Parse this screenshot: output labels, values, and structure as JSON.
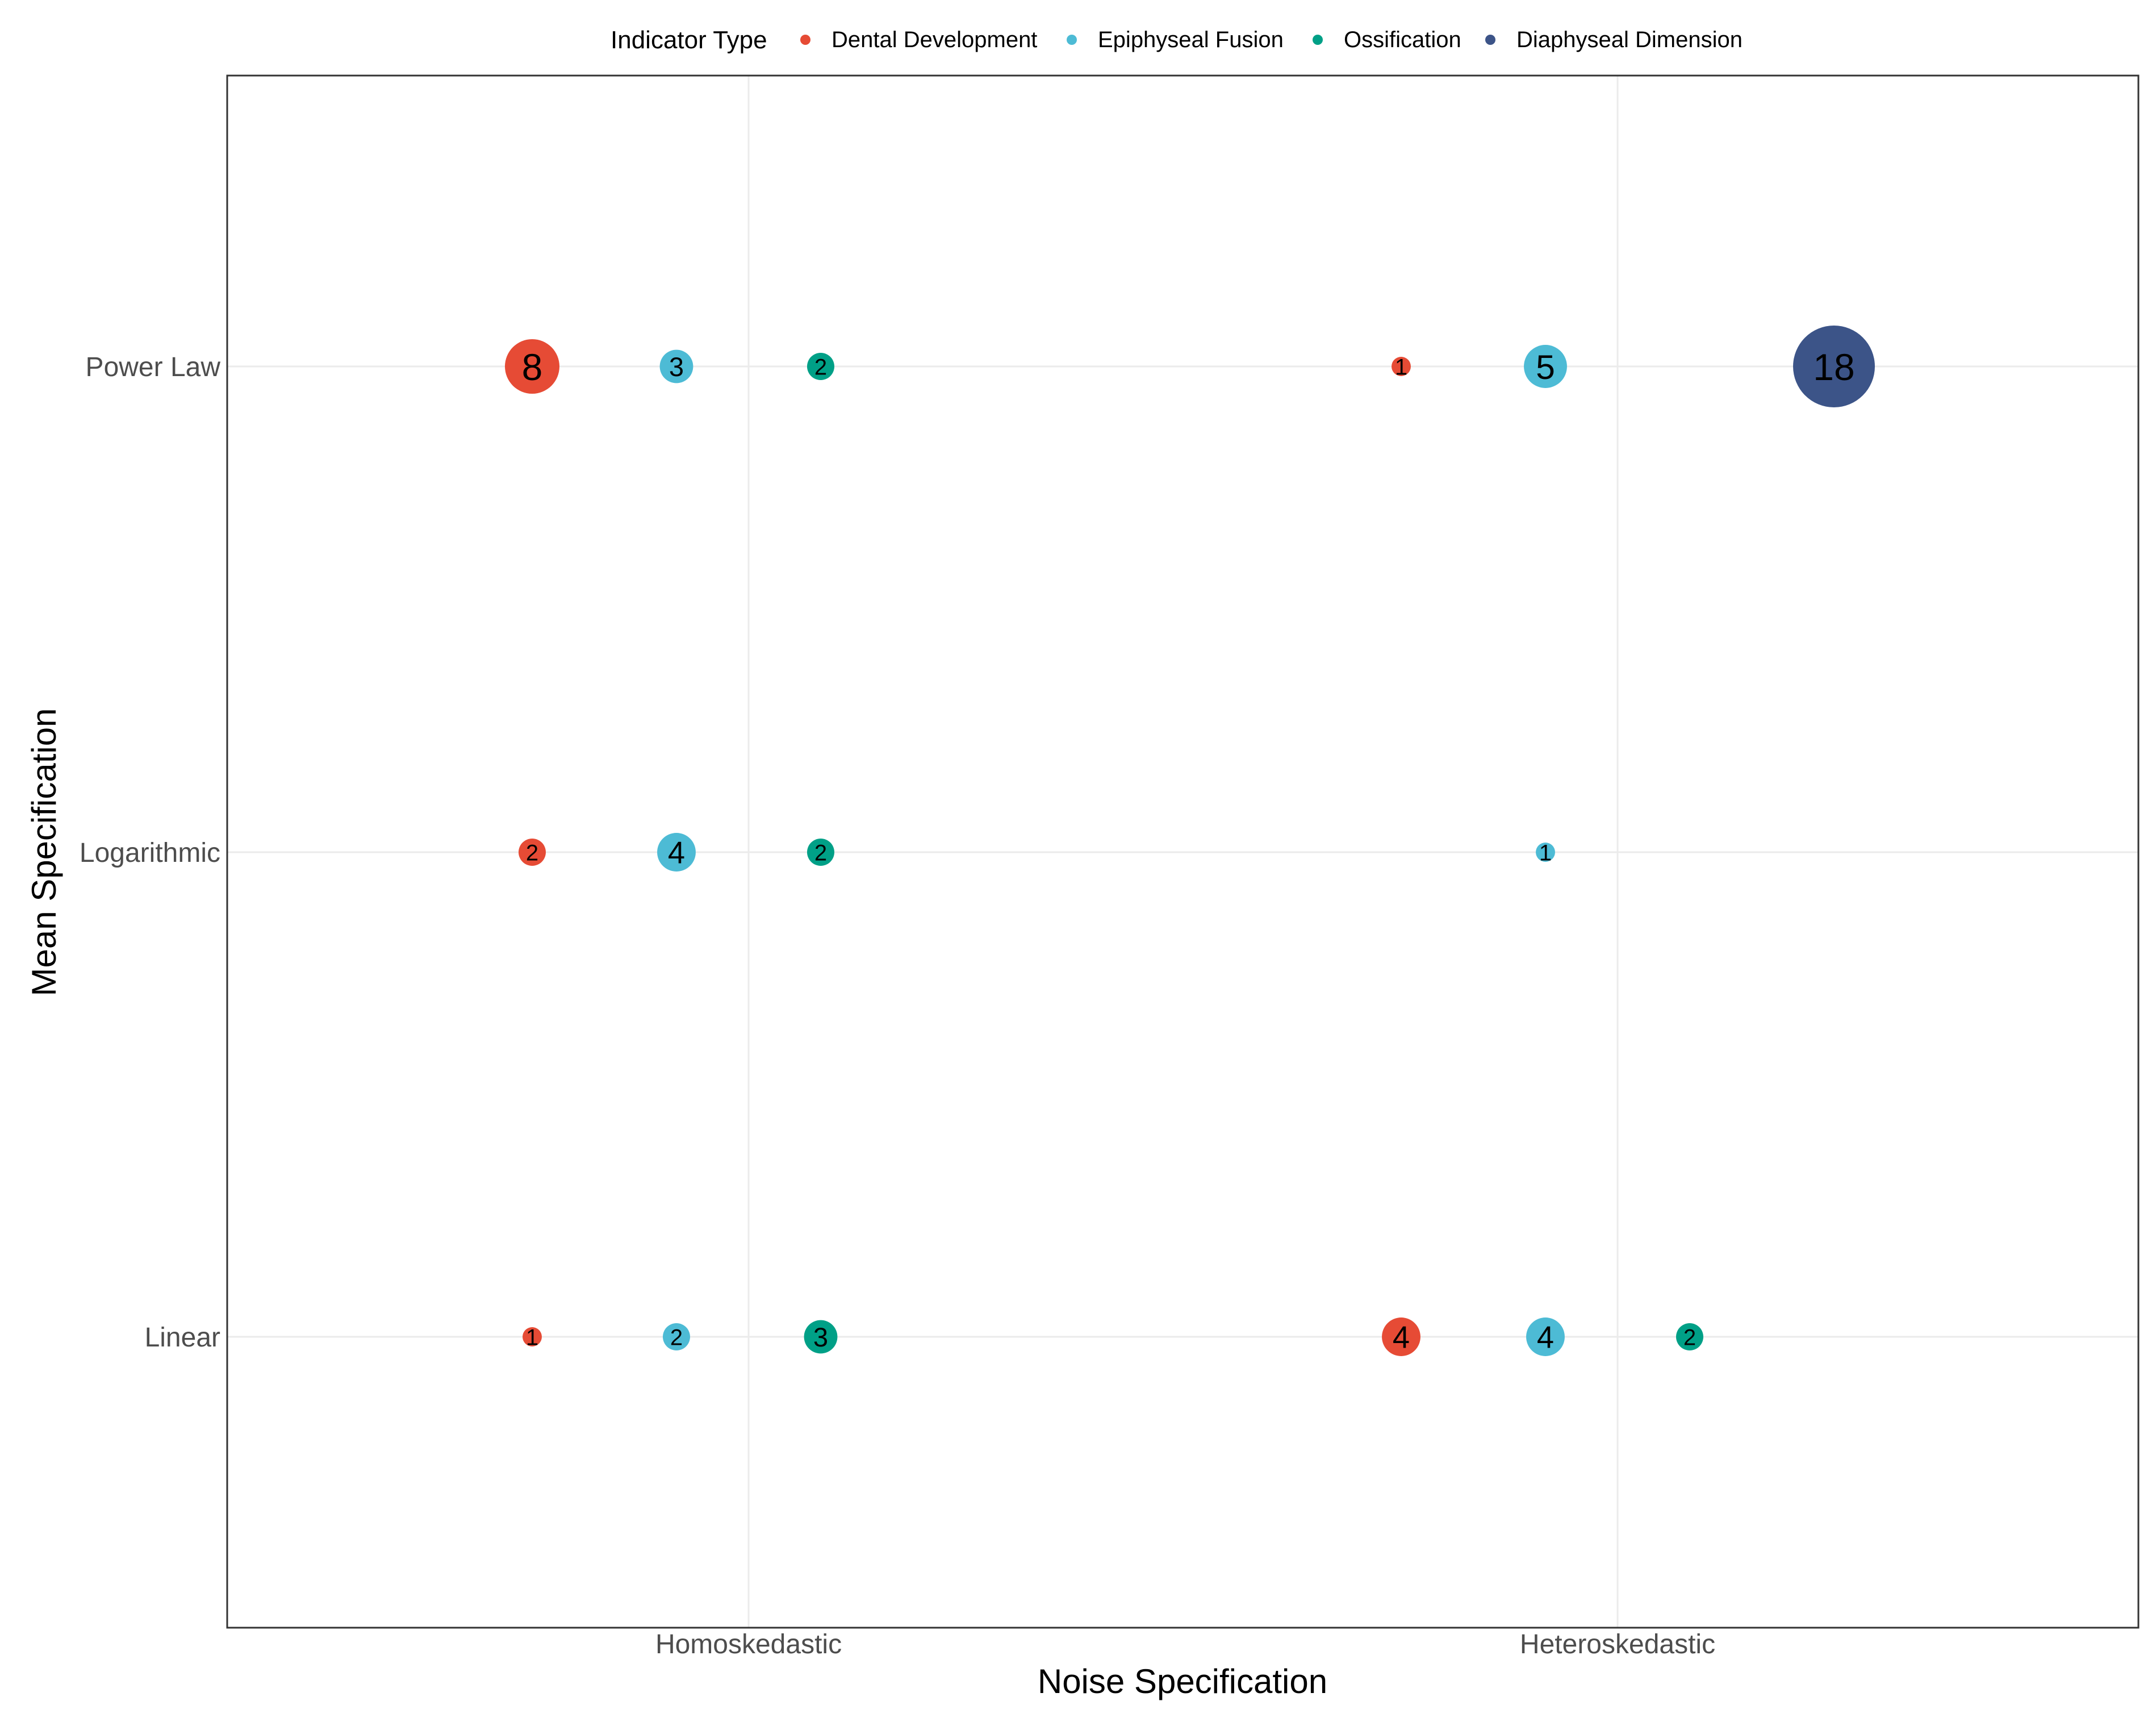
{
  "chart_data": {
    "type": "scatter",
    "title": "",
    "xlabel": "Noise Specification",
    "ylabel": "Mean Specification",
    "x_categories": [
      "Homoskedastic",
      "Heteroskedastic"
    ],
    "y_categories": [
      "Linear",
      "Logarithmic",
      "Power Law"
    ],
    "legend": {
      "title": "Indicator Type",
      "placement": "top",
      "entries": [
        {
          "name": "Dental Development",
          "color": "#E64B35"
        },
        {
          "name": "Epiphyseal Fusion",
          "color": "#4DBBD5"
        },
        {
          "name": "Ossification",
          "color": "#00A087"
        },
        {
          "name": "Diaphyseal Dimension",
          "color": "#3C5488"
        }
      ]
    },
    "grid": true,
    "series": [
      {
        "name": "Dental Development",
        "color": "#E64B35",
        "points": [
          {
            "x": "Homoskedastic",
            "y": "Power Law",
            "count": 8
          },
          {
            "x": "Heteroskedastic",
            "y": "Power Law",
            "count": 1
          },
          {
            "x": "Homoskedastic",
            "y": "Logarithmic",
            "count": 2
          },
          {
            "x": "Homoskedastic",
            "y": "Linear",
            "count": 1
          },
          {
            "x": "Heteroskedastic",
            "y": "Linear",
            "count": 4
          }
        ]
      },
      {
        "name": "Epiphyseal Fusion",
        "color": "#4DBBD5",
        "points": [
          {
            "x": "Homoskedastic",
            "y": "Power Law",
            "count": 3
          },
          {
            "x": "Heteroskedastic",
            "y": "Power Law",
            "count": 5
          },
          {
            "x": "Homoskedastic",
            "y": "Logarithmic",
            "count": 4
          },
          {
            "x": "Heteroskedastic",
            "y": "Logarithmic",
            "count": 1
          },
          {
            "x": "Homoskedastic",
            "y": "Linear",
            "count": 2
          },
          {
            "x": "Heteroskedastic",
            "y": "Linear",
            "count": 4
          }
        ]
      },
      {
        "name": "Ossification",
        "color": "#00A087",
        "points": [
          {
            "x": "Homoskedastic",
            "y": "Power Law",
            "count": 2
          },
          {
            "x": "Homoskedastic",
            "y": "Logarithmic",
            "count": 2
          },
          {
            "x": "Homoskedastic",
            "y": "Linear",
            "count": 3
          },
          {
            "x": "Heteroskedastic",
            "y": "Linear",
            "count": 2
          }
        ]
      },
      {
        "name": "Diaphyseal Dimension",
        "color": "#3C5488",
        "points": [
          {
            "x": "Heteroskedastic",
            "y": "Power Law",
            "count": 18
          }
        ]
      }
    ]
  }
}
